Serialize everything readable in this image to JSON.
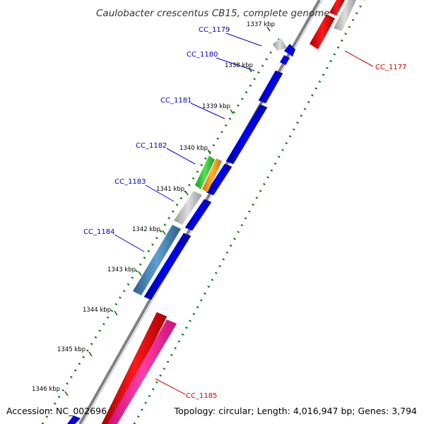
{
  "title": "Caulobacter crescentus CB15, complete genome",
  "footer": {
    "accession": "Accession: NC_002696",
    "topology": "Topology: circular; Length: 4,016,947 bp; Genes: 3,794"
  },
  "colors": {
    "forward": "#0000ee",
    "reverse_red": "#ee0000",
    "pink": "#ff1493",
    "grey": "#bdbdbd",
    "steel": "#4682b4",
    "green": "#33cc33",
    "orange": "#ff9900",
    "label_blue": "#0000cc",
    "label_red": "#dd0000",
    "tick_green": "#006600",
    "backbone": "#808080"
  },
  "kbp_ticks": [
    "1337 kbp",
    "1338 kbp",
    "1339 kbp",
    "1340 kbp",
    "1341 kbp",
    "1342 kbp",
    "1343 kbp",
    "1344 kbp",
    "1345 kbp",
    "1346 kbp"
  ],
  "gene_labels": [
    {
      "id": "cc1179",
      "text": "CC_1179",
      "color": "blue"
    },
    {
      "id": "cc1180",
      "text": "CC_1180",
      "color": "blue"
    },
    {
      "id": "cc1181",
      "text": "CC_1181",
      "color": "blue"
    },
    {
      "id": "cc1182",
      "text": "CC_1182",
      "color": "blue"
    },
    {
      "id": "cc1183",
      "text": "CC_1183",
      "color": "blue"
    },
    {
      "id": "cc1184",
      "text": "CC_1184",
      "color": "blue"
    },
    {
      "id": "cc1177",
      "text": "CC_1177",
      "color": "red"
    },
    {
      "id": "cc1185",
      "text": "CC_1185",
      "color": "red"
    }
  ]
}
